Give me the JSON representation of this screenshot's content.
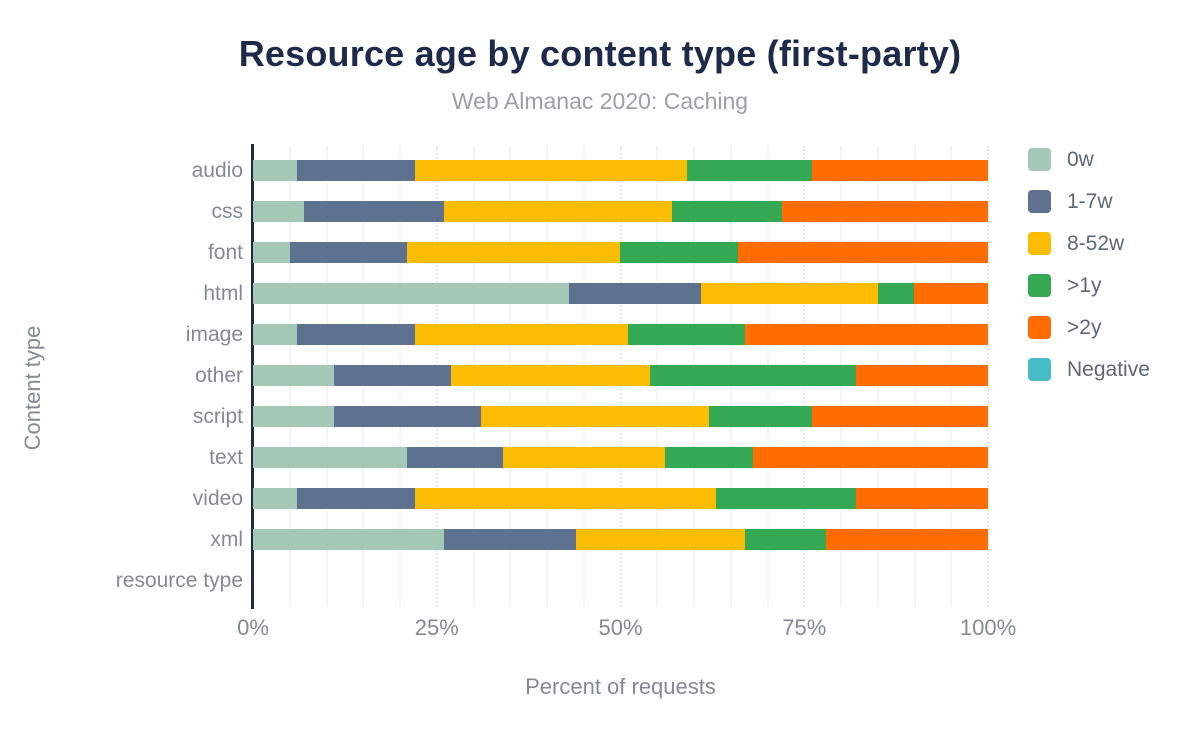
{
  "title": "Resource age by content type (first-party)",
  "subtitle": "Web Almanac 2020: Caching",
  "palette": {
    "title_color": "#1e2a4a",
    "axis_line_color": "#1e2a4a",
    "axis_text_color": "#848a93",
    "subtitle_color": "#9aa0a6",
    "legend_text_color": "#5e6774",
    "gridline_color": "#f5f5f6"
  },
  "chart_data": {
    "type": "bar",
    "stacked": true,
    "orientation": "horizontal",
    "title": "Resource age by content type (first-party)",
    "subtitle": "Web Almanac 2020: Caching",
    "xlabel": "Percent of requests",
    "ylabel": "Content type",
    "xlim": [
      0,
      100
    ],
    "x_ticks": [
      "0%",
      "25%",
      "50%",
      "75%",
      "100%"
    ],
    "grid": true,
    "minor_grid_step_percent": 5,
    "legend_position": "right",
    "categories": [
      "audio",
      "css",
      "font",
      "html",
      "image",
      "other",
      "script",
      "text",
      "video",
      "xml",
      "resource type"
    ],
    "series": [
      {
        "name": "0w",
        "color": "#a5c7b5",
        "values": [
          6,
          7,
          5,
          43,
          6,
          11,
          11,
          21,
          6,
          26,
          0
        ]
      },
      {
        "name": "1-7w",
        "color": "#5e7290",
        "values": [
          16,
          19,
          16,
          18,
          16,
          16,
          20,
          13,
          16,
          18,
          0
        ]
      },
      {
        "name": "8-52w",
        "color": "#fbbc04",
        "values": [
          37,
          31,
          29,
          24,
          29,
          27,
          31,
          22,
          41,
          23,
          0
        ]
      },
      {
        "name": ">1y",
        "color": "#34a853",
        "values": [
          17,
          15,
          16,
          5,
          16,
          28,
          14,
          12,
          19,
          11,
          0
        ]
      },
      {
        "name": ">2y",
        "color": "#ff6c00",
        "values": [
          24,
          28,
          34,
          10,
          33,
          18,
          24,
          32,
          18,
          22,
          0
        ]
      },
      {
        "name": "Negative",
        "color": "#46bdc6",
        "values": [
          0,
          0,
          0,
          0,
          0,
          0,
          0,
          0,
          0,
          0,
          0
        ]
      }
    ]
  }
}
